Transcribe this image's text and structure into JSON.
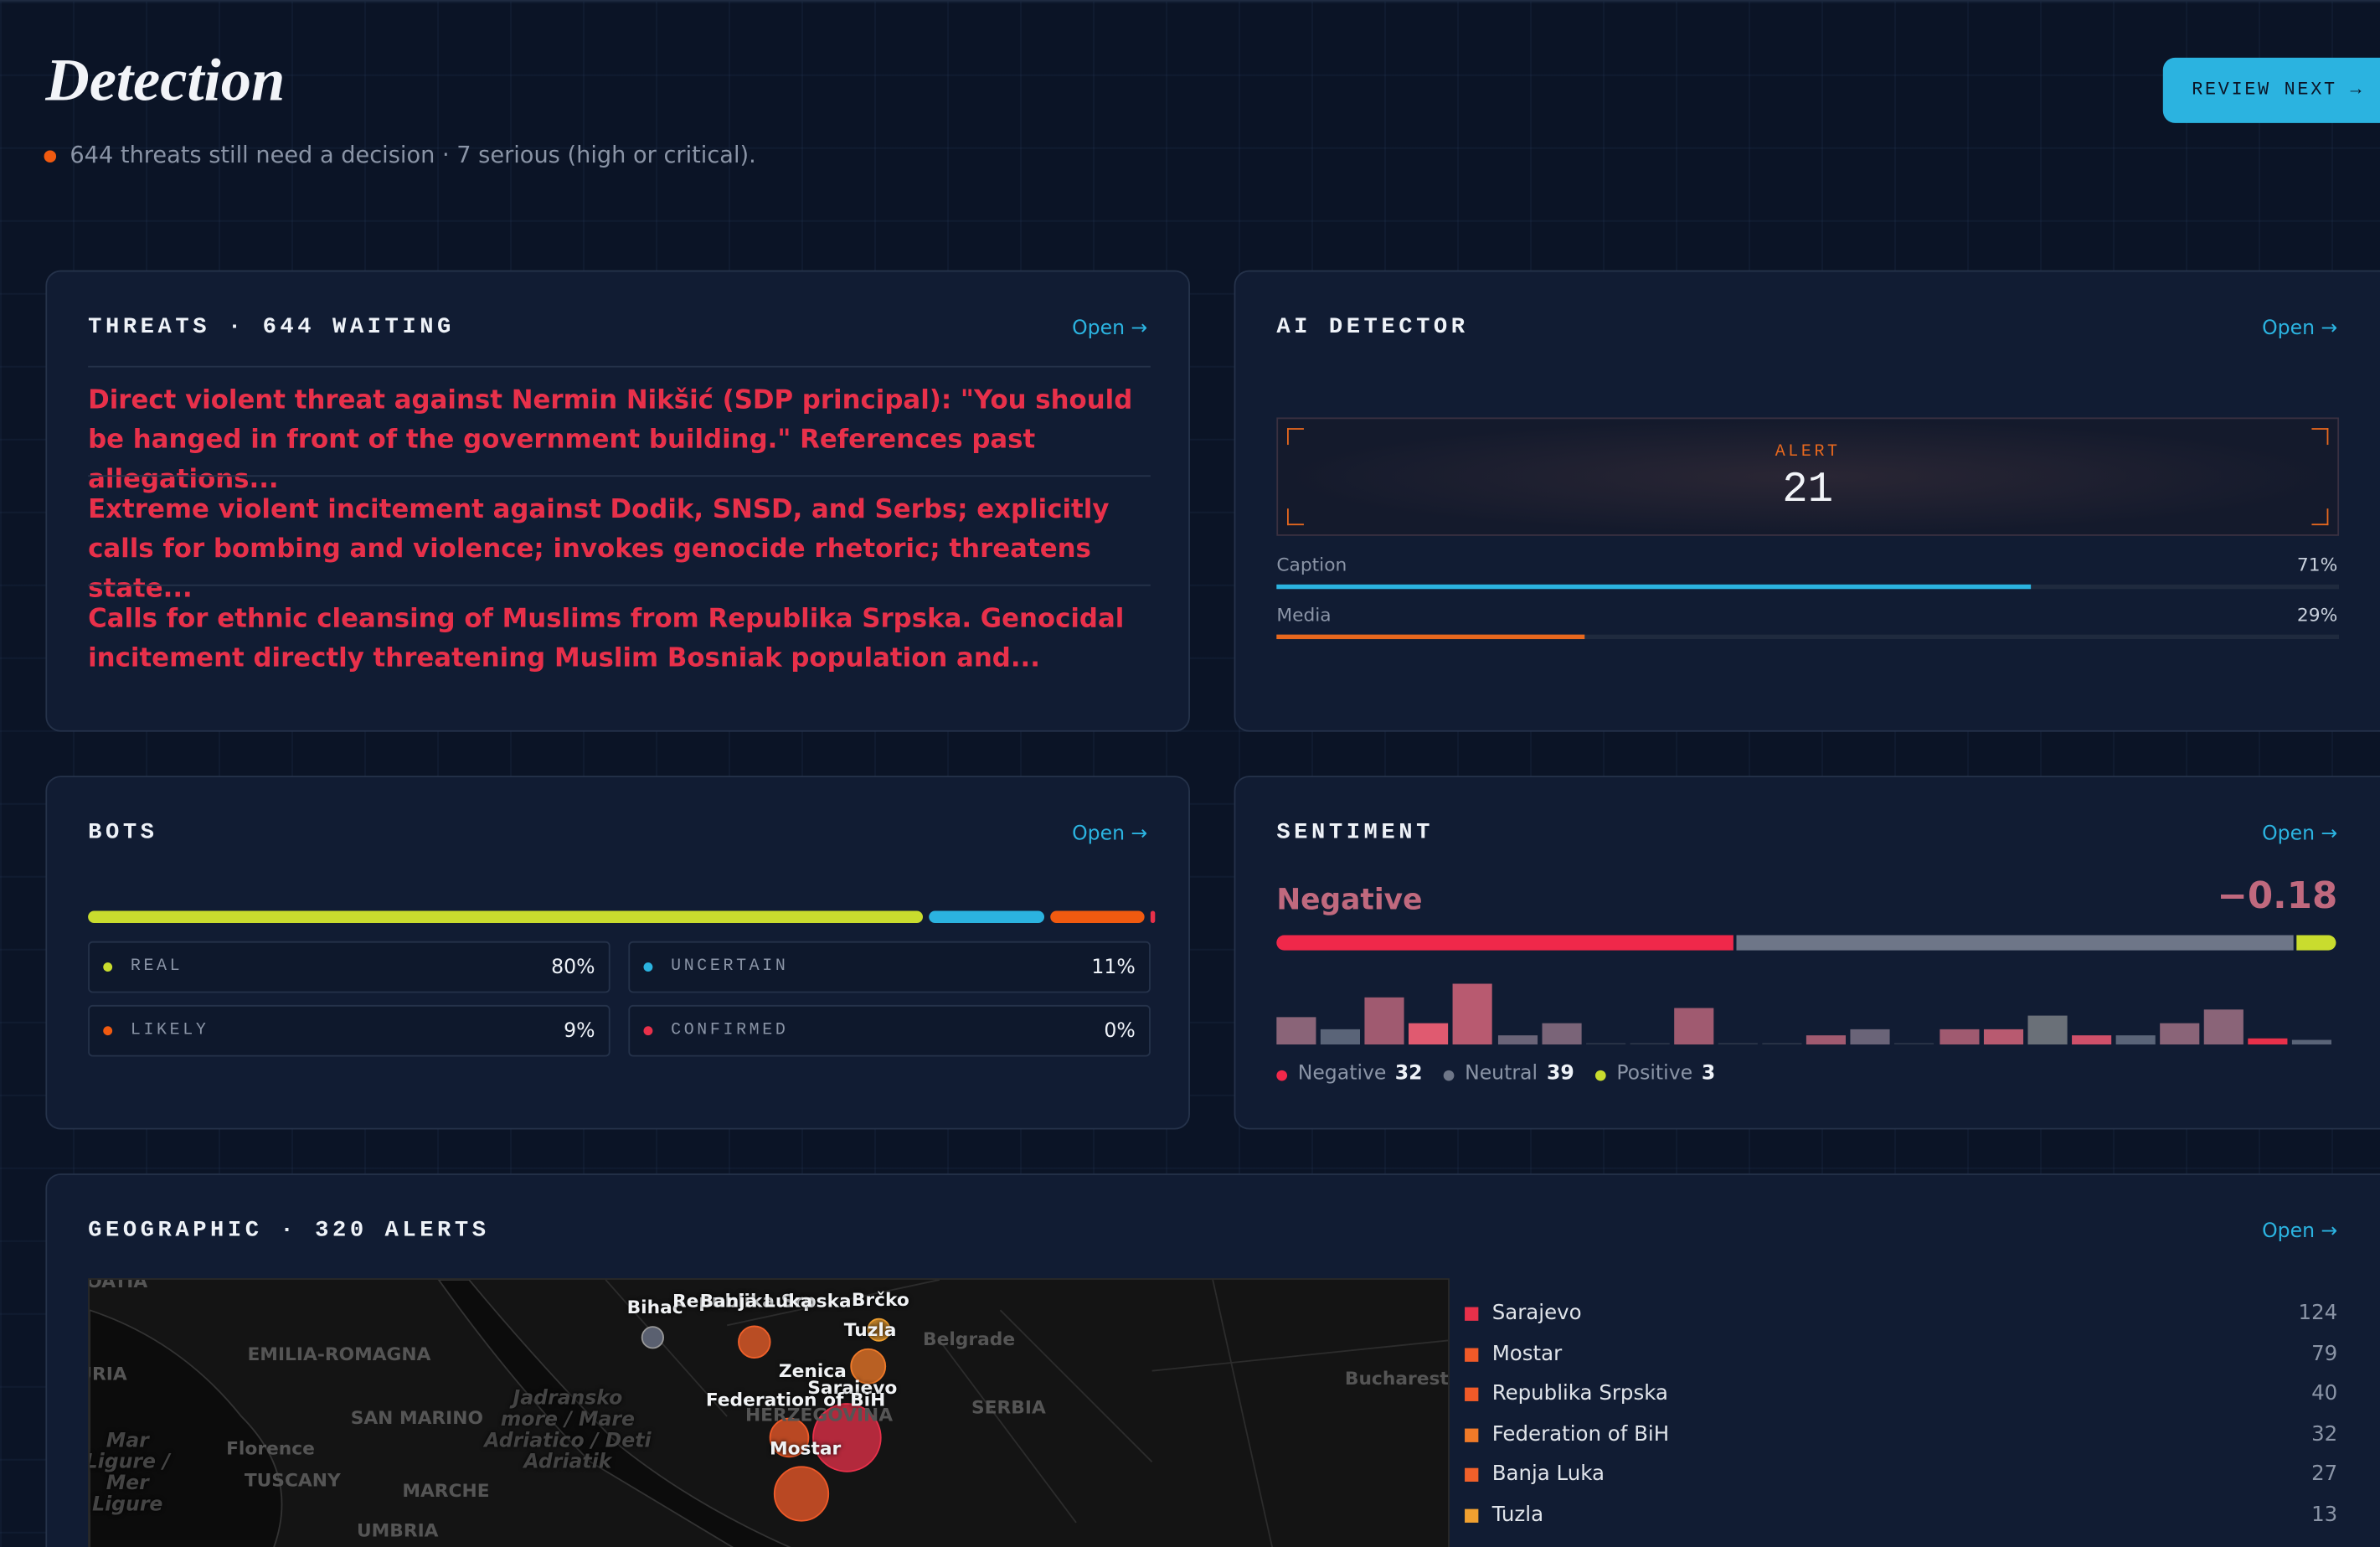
{
  "header": {
    "title": "Detection",
    "subtitle": "644 threats still need a decision · 7 serious (high or critical).",
    "button": "REVIEW NEXT →"
  },
  "threats": {
    "title": "THREATS · 644 WAITING",
    "open": "Open →",
    "items": [
      "Direct violent threat against Nermin Nikšić (SDP principal): \"You should be hanged in front of the government building.\" References past allegations...",
      "Extreme violent incitement against Dodik, SNSD, and Serbs; explicitly calls for bombing and violence; invokes genocide rhetoric; threatens state...",
      "Calls for ethnic cleansing of Muslims from Republika Srpska. Genocidal incitement directly threatening Muslim Bosniak population and..."
    ]
  },
  "ai_detector": {
    "title": "AI DETECTOR",
    "open": "Open →",
    "alert_label": "ALERT",
    "alert_value": 21,
    "bars": [
      {
        "name": "Caption",
        "value": 71,
        "label": "71%",
        "color": "#2bb3e0"
      },
      {
        "name": "Media",
        "value": 29,
        "label": "29%",
        "color": "#e8681e"
      }
    ]
  },
  "bots": {
    "title": "BOTS",
    "open": "Open →",
    "segments": [
      {
        "name": "REAL",
        "value": 80,
        "label": "80%",
        "color": "#c9dc2e"
      },
      {
        "name": "UNCERTAIN",
        "value": 11,
        "label": "11%",
        "color": "#2bb3e0"
      },
      {
        "name": "LIKELY",
        "value": 9,
        "label": "9%",
        "color": "#f05a10"
      },
      {
        "name": "CONFIRMED",
        "value": 0,
        "label": "0%",
        "color": "#e8304a"
      }
    ]
  },
  "sentiment": {
    "title": "SENTIMENT",
    "open": "Open →",
    "label": "Negative",
    "score": "−0.18",
    "parts": [
      {
        "name": "Negative",
        "value": 32,
        "color": "#f0284a"
      },
      {
        "name": "Neutral",
        "value": 39,
        "color": "#6e7688"
      },
      {
        "name": "Positive",
        "value": 3,
        "color": "#c9dc2e"
      }
    ],
    "histogram": [
      18,
      10,
      31,
      14,
      40,
      6,
      14,
      1,
      1,
      24,
      1,
      1,
      6,
      10,
      1,
      10,
      10,
      19,
      6,
      6,
      14,
      23,
      4,
      3
    ],
    "histogram_colors": [
      "#8a6478",
      "#5a6478",
      "#a05a70",
      "#e05a70",
      "#b85a70",
      "#6a6478",
      "#7a6478",
      "#2a3448",
      "#2a3448",
      "#a05a70",
      "#2a3448",
      "#2a3448",
      "#a05a70",
      "#6a6478",
      "#2a3448",
      "#a05a70",
      "#b85a70",
      "#6a7078",
      "#d0506a",
      "#5a6478",
      "#8a6478",
      "#8a6478",
      "#e8304a",
      "#5a6478"
    ]
  },
  "geographic": {
    "title": "GEOGRAPHIC · 320 ALERTS",
    "open": "Open →",
    "map_labels": [
      "CROATIA",
      "Bihać",
      "Republika Srpska",
      "Banja Luka",
      "Brčko",
      "Tuzla",
      "Zenica",
      "Sarajevo",
      "Federation of BiH",
      "HERZEGOVINA",
      "Mostar",
      "SERBIA",
      "Belgrade",
      "Bucharest",
      "EMILIA-ROMAGNA",
      "SAN MARINO",
      "TUSCANY",
      "MARCHE",
      "UMBRIA",
      "Florence",
      "LIGURIA",
      "Jadransko more / Mare Adriatico / Deti Adriatik",
      "Mar Ligure / Mer Ligure"
    ],
    "regions": [
      {
        "name": "Sarajevo",
        "value": 124,
        "color": "#e8304a"
      },
      {
        "name": "Mostar",
        "value": 79,
        "color": "#f05a28"
      },
      {
        "name": "Republika Srpska",
        "value": 40,
        "color": "#f05a28"
      },
      {
        "name": "Federation of BiH",
        "value": 32,
        "color": "#f07a28"
      },
      {
        "name": "Banja Luka",
        "value": 27,
        "color": "#f0602a"
      },
      {
        "name": "Tuzla",
        "value": 13,
        "color": "#f0a030"
      }
    ]
  }
}
